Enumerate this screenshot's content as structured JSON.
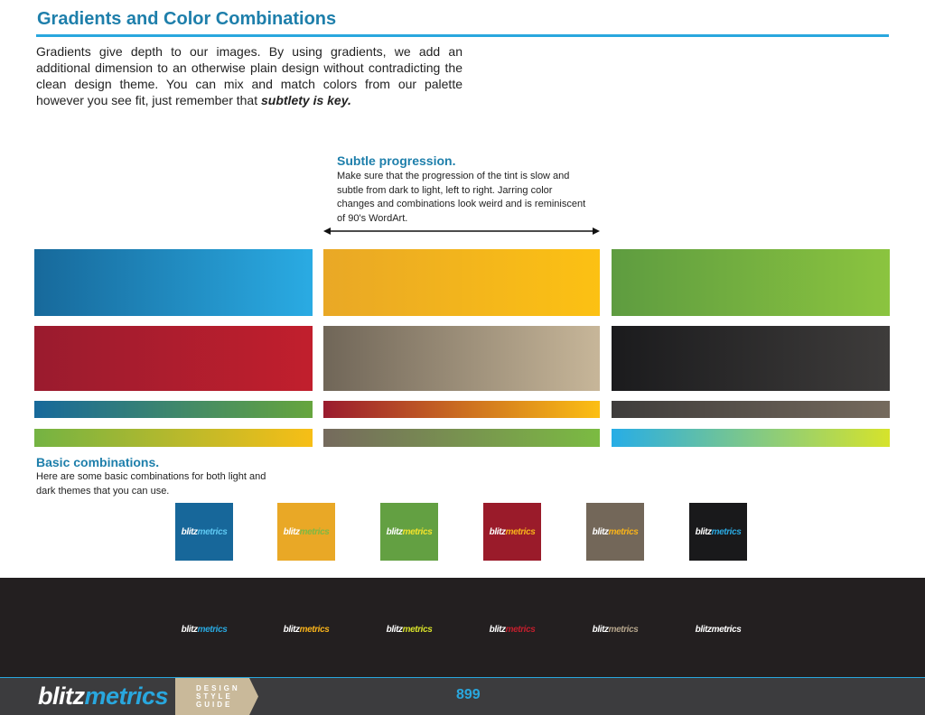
{
  "header": {
    "title": "Gradients and Color Combinations",
    "intro_text": "Gradients give depth to our images. By using gradients, we add an additional dimension to an otherwise plain design without contradicting the clean design theme. You can mix and match colors from our palette however you see fit, just remember that ",
    "intro_emphasis": "subtlety is key."
  },
  "callout": {
    "heading": "Subtle progression.",
    "body": "Make sure that the progression of the tint is slow and subtle from dark to light, left to right. Jarring color changes and combinations look weird and is reminiscent of 90's WordArt."
  },
  "gradients": {
    "large": [
      {
        "name": "blue",
        "from": "#17699b",
        "to": "#2aabe3"
      },
      {
        "name": "orange",
        "from": "#e9a826",
        "to": "#fcc113"
      },
      {
        "name": "green",
        "from": "#5e9c40",
        "to": "#8bc43f"
      },
      {
        "name": "red",
        "from": "#9a1b2e",
        "to": "#c11f2d"
      },
      {
        "name": "taupe",
        "from": "#706658",
        "to": "#c7b699"
      },
      {
        "name": "black",
        "from": "#1b1b1d",
        "to": "#3e3c3b"
      }
    ],
    "strips": [
      {
        "name": "blue-green",
        "from": "#17699b",
        "to": "#66a53d"
      },
      {
        "name": "red-orange",
        "from": "#9a1b2e",
        "to": "#fcbf14"
      },
      {
        "name": "gray-taupe",
        "from": "#3e3c3b",
        "to": "#756a5d"
      },
      {
        "name": "green-yellow",
        "from": "#74b343",
        "to": "#f7be16"
      },
      {
        "name": "taupe-green",
        "from": "#756a5d",
        "to": "#7bbb42"
      },
      {
        "name": "cyan-lime",
        "from": "#27ade6",
        "to": "#d6e32b"
      }
    ]
  },
  "basic": {
    "heading": "Basic combinations.",
    "body": "Here are some basic combinations for both light and dark themes that you can use."
  },
  "logo_tiles": [
    {
      "bg": "#17679a",
      "blitz": "blitz",
      "metrics": "metrics",
      "accent": "#5ec8f2"
    },
    {
      "bg": "#e9a826",
      "blitz": "blitz",
      "metrics": "metrics",
      "accent": "#7fb843"
    },
    {
      "bg": "#63a042",
      "blitz": "blitz",
      "metrics": "metrics",
      "accent": "#f1e22c"
    },
    {
      "bg": "#9a1b2a",
      "blitz": "blitz",
      "metrics": "metrics",
      "accent": "#f7b21b"
    },
    {
      "bg": "#736759",
      "blitz": "blitz",
      "metrics": "metrics",
      "accent": "#f7b21b"
    },
    {
      "bg": "#19191b",
      "blitz": "blitz",
      "metrics": "metrics",
      "accent": "#2aa8e0"
    }
  ],
  "dark_logos": [
    {
      "blitz": "blitz",
      "metrics": "metrics",
      "accent": "#29a7de"
    },
    {
      "blitz": "blitz",
      "metrics": "metrics",
      "accent": "#f7b21b"
    },
    {
      "blitz": "blitz",
      "metrics": "metrics",
      "accent": "#d6e02a"
    },
    {
      "blitz": "blitz",
      "metrics": "metrics",
      "accent": "#c11f2d"
    },
    {
      "blitz": "blitz",
      "metrics": "metrics",
      "accent": "#b3a38a"
    },
    {
      "blitz": "blitz",
      "metrics": "metrics",
      "accent": "#ffffff"
    }
  ],
  "footer": {
    "logo_blitz": "blitz",
    "logo_metrics": "metrics",
    "guide_line1": "DESIGN",
    "guide_line2": "STYLE",
    "guide_line3": "GUIDE",
    "page_number": "899"
  },
  "colors": {
    "accent": "#29a7de",
    "heading": "#1e7fab",
    "footer_bg": "#3c3c3e",
    "band_bg": "#231f20",
    "tag_bg": "#c9b99a"
  }
}
